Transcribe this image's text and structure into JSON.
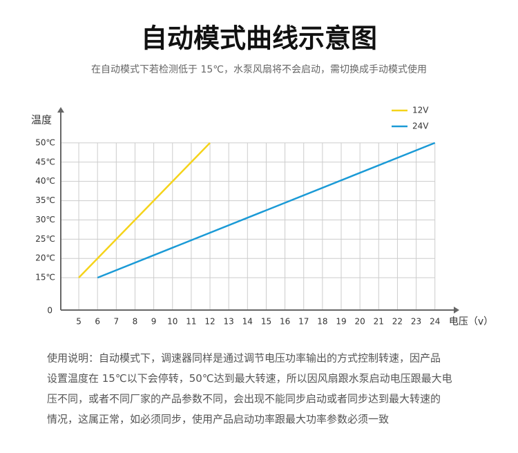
{
  "chart_data": {
    "type": "line",
    "title": "自动模式曲线示意图",
    "subtitle": "在自动模式下若检测低于 15℃，水泵风扇将不会启动，需切换成手动模式使用",
    "y_label": "温度",
    "x_label": "电压（v）",
    "origin_label": "0",
    "xlim": [
      4.04,
      25.3
    ],
    "xticks": [
      5,
      6,
      7,
      8,
      9,
      10,
      11,
      12,
      13,
      14,
      15,
      16,
      17,
      18,
      19,
      20,
      21,
      22,
      23,
      24
    ],
    "ylim": [
      6.6,
      59.3
    ],
    "yticks": [
      {
        "value": 15,
        "label": "15℃"
      },
      {
        "value": 20,
        "label": "20℃"
      },
      {
        "value": 25,
        "label": "25℃"
      },
      {
        "value": 30,
        "label": "30℃"
      },
      {
        "value": 35,
        "label": "35℃"
      },
      {
        "value": 40,
        "label": "40℃"
      },
      {
        "value": 45,
        "label": "45℃"
      },
      {
        "value": 50,
        "label": "50℃"
      }
    ],
    "grid": true,
    "legend": "upper right",
    "series": [
      {
        "name": "12V",
        "color": "#f5d31a",
        "x": [
          5,
          12
        ],
        "values": [
          15,
          50
        ]
      },
      {
        "name": "24V",
        "color": "#1a9ad6",
        "x": [
          6,
          24
        ],
        "values": [
          15,
          50
        ]
      }
    ],
    "description_lines": [
      "使用说明：自动模式下，调速器同样是通过调节电压功率输出的方式控制转速，因产品",
      "设置温度在 15℃以下会停转，50℃达到最大转速，所以因风扇跟水泵启动电压跟最大电",
      "压不同，或者不同厂家的产品参数不同，会出现不能同步启动或者同步达到最大转速的",
      "情况，这属正常，如必须同步，使用产品启动功率跟最大功率参数必须一致"
    ]
  }
}
